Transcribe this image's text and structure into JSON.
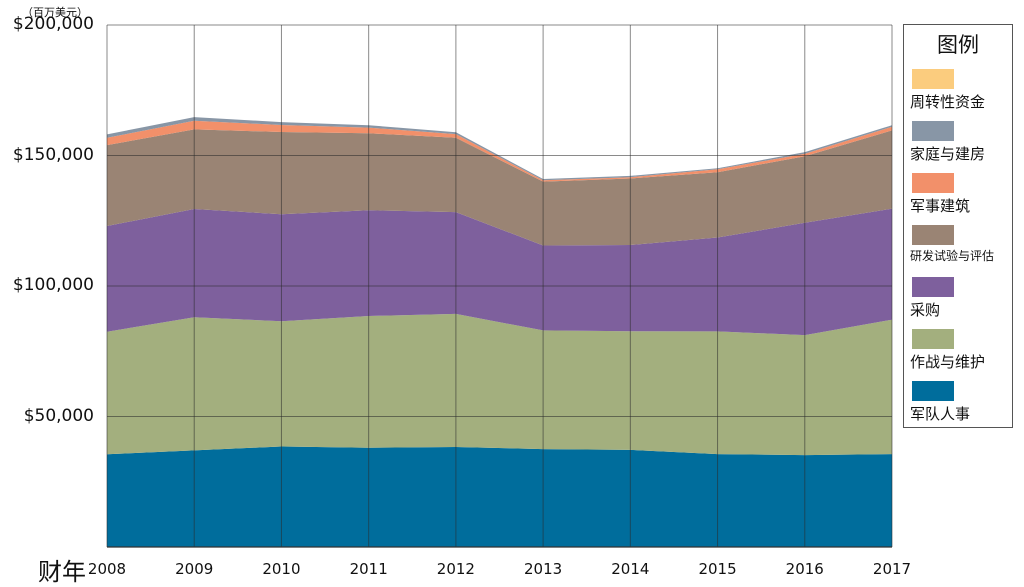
{
  "unit_label": "（百万美元）",
  "chart_data": {
    "type": "area",
    "stacked": true,
    "x": [
      "2008",
      "2009",
      "2010",
      "2011",
      "2012",
      "2013",
      "2014",
      "2015",
      "2016",
      "2017"
    ],
    "xlabel": "财年",
    "ylim": [
      0,
      200000
    ],
    "yticks": [
      "$200,000",
      "$150,000",
      "$100,000",
      "$50,000"
    ],
    "ytick_values": [
      200000,
      150000,
      100000,
      50000
    ],
    "grid": true,
    "legend_title": "图例",
    "legend_placement": "right",
    "series": [
      {
        "name": "军队人事",
        "color": "#006d9c",
        "values": [
          35500,
          37000,
          38500,
          38000,
          38300,
          37500,
          37200,
          35600,
          35200,
          35600
        ]
      },
      {
        "name": "作战与维护",
        "color": "#a3af7e",
        "values": [
          47000,
          51000,
          48000,
          50500,
          51000,
          45500,
          45500,
          47000,
          46000,
          51500
        ]
      },
      {
        "name": "采购",
        "color": "#7e609d",
        "values": [
          40500,
          41500,
          41000,
          40500,
          39000,
          32500,
          33000,
          36000,
          43000,
          42500
        ]
      },
      {
        "name": "研发试验与评估",
        "color": "#9a8474",
        "values": [
          31000,
          30500,
          31500,
          29500,
          28500,
          24500,
          25500,
          25000,
          25500,
          30000
        ]
      },
      {
        "name": "军事建筑",
        "color": "#f2906a",
        "values": [
          2800,
          3300,
          2700,
          2200,
          1400,
          500,
          500,
          1100,
          1000,
          1400
        ]
      },
      {
        "name": "家庭与建房",
        "color": "#8896a6",
        "values": [
          1300,
          1400,
          1100,
          900,
          700,
          500,
          500,
          400,
          600,
          600
        ]
      },
      {
        "name": "周转性资金",
        "color": "#fbcc7e",
        "values": [
          0,
          0,
          0,
          0,
          0,
          0,
          0,
          0,
          0,
          0
        ]
      }
    ]
  }
}
